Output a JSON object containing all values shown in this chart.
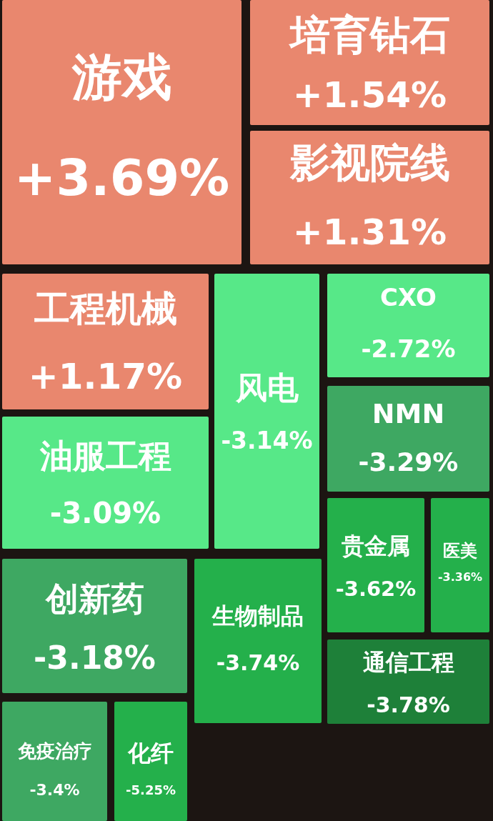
{
  "chart_data": {
    "type": "other",
    "categories": [
      "游戏",
      "培育钻石",
      "影视院线",
      "工程机械",
      "风电",
      "CXO",
      "NMN",
      "油服工程",
      "贵金属",
      "医美",
      "创新药",
      "生物制品",
      "通信工程",
      "免疫治疗",
      "化纤"
    ],
    "values": [
      3.69,
      1.54,
      1.31,
      1.17,
      -3.14,
      -2.72,
      -3.29,
      -3.09,
      -3.62,
      -3.36,
      -3.18,
      -3.74,
      -3.78,
      -3.4,
      -5.25
    ],
    "value_labels": [
      "+3.69%",
      "+1.54%",
      "+1.31%",
      "+1.17%",
      "-3.14%",
      "-2.72%",
      "-3.29%",
      "-3.09%",
      "-3.62%",
      "-3.36%",
      "-3.18%",
      "-3.74%",
      "-3.78%",
      "-3.4%",
      "-5.25%"
    ],
    "colors": [
      "#e9876e",
      "#e9876e",
      "#e9876e",
      "#e9876e",
      "#57e888",
      "#57e888",
      "#3ea862",
      "#57e888",
      "#24b04b",
      "#24b04b",
      "#3ea862",
      "#24b04b",
      "#1e8039",
      "#3ea862",
      "#24b04b"
    ]
  }
}
